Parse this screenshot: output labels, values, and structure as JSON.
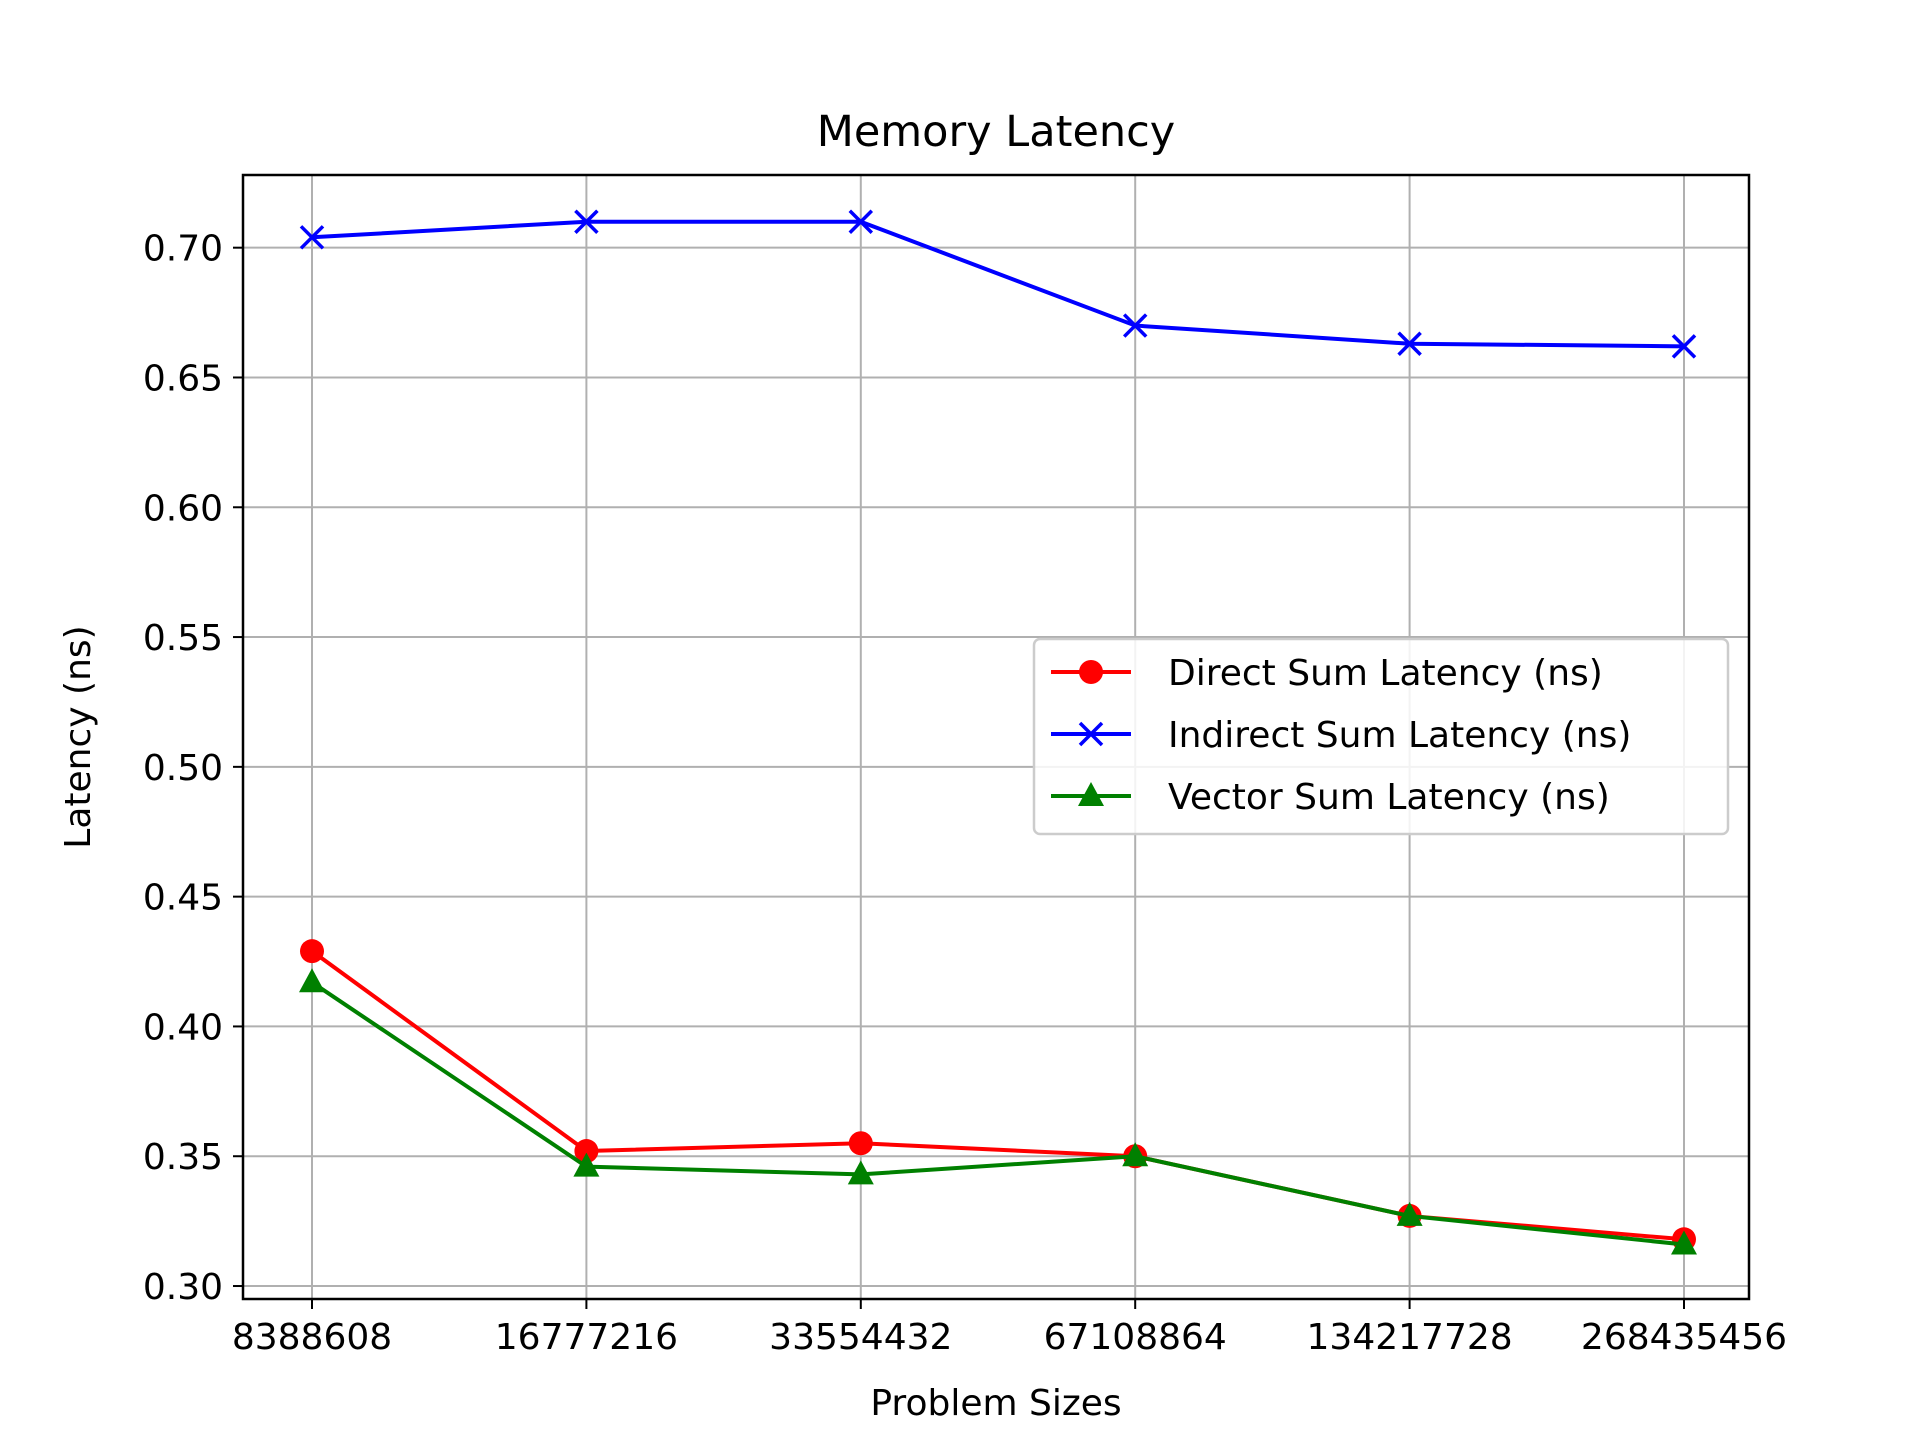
{
  "chart_data": {
    "type": "line",
    "title": "Memory Latency",
    "xlabel": "Problem Sizes",
    "ylabel": "Latency (ns)",
    "categories": [
      "8388608",
      "16777216",
      "33554432",
      "67108864",
      "134217728",
      "268435456"
    ],
    "ylim": [
      0.295,
      0.728
    ],
    "yticks": [
      "0.30",
      "0.35",
      "0.40",
      "0.45",
      "0.50",
      "0.55",
      "0.60",
      "0.65",
      "0.70"
    ],
    "grid": true,
    "legend": "center-right",
    "series": [
      {
        "name": "Direct Sum Latency (ns)",
        "values": [
          0.429,
          0.352,
          0.355,
          0.35,
          0.327,
          0.318
        ],
        "color": "#ff0000",
        "marker": "circle"
      },
      {
        "name": "Indirect Sum Latency (ns)",
        "values": [
          0.704,
          0.71,
          0.71,
          0.67,
          0.663,
          0.662
        ],
        "color": "#0000ff",
        "marker": "x"
      },
      {
        "name": "Vector Sum Latency (ns)",
        "values": [
          0.417,
          0.346,
          0.343,
          0.35,
          0.327,
          0.316
        ],
        "color": "#008000",
        "marker": "triangle"
      }
    ]
  }
}
